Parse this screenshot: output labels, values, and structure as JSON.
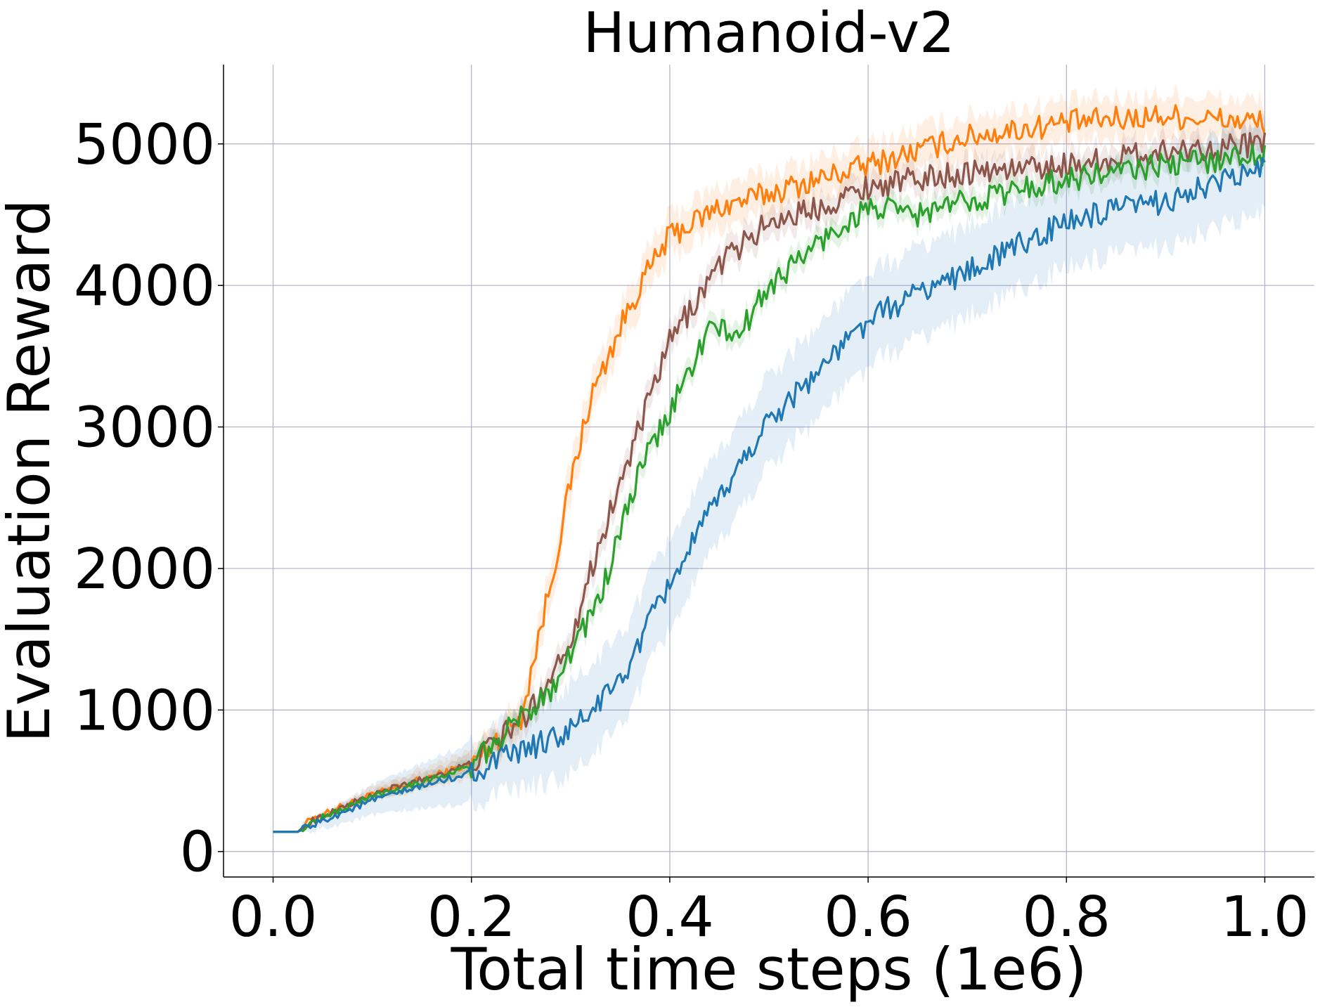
{
  "chart_data": {
    "type": "line",
    "title": "Humanoid-v2",
    "xlabel": "Total time steps (1e6)",
    "ylabel": "Evaluation Reward",
    "xlim": [
      -0.05,
      1.05
    ],
    "ylim": [
      -180,
      5560
    ],
    "xticks": [
      0.0,
      0.2,
      0.4,
      0.6,
      0.8,
      1.0
    ],
    "xtick_labels": [
      "0.0",
      "0.2",
      "0.4",
      "0.6",
      "0.8",
      "1.0"
    ],
    "yticks": [
      0,
      1000,
      2000,
      3000,
      4000,
      5000
    ],
    "ytick_labels": [
      "0",
      "1000",
      "2000",
      "3000",
      "4000",
      "5000"
    ],
    "grid": true,
    "legend": "none",
    "series": [
      {
        "color": "#ff7f0e",
        "band": 150,
        "x": [
          0,
          0.025,
          0.04,
          0.1,
          0.2,
          0.25,
          0.28,
          0.3,
          0.32,
          0.35,
          0.37,
          0.4,
          0.45,
          0.5,
          0.55,
          0.6,
          0.65,
          0.7,
          0.8,
          0.9,
          1.0
        ],
        "y": [
          140,
          140,
          240,
          400,
          620,
          950,
          1900,
          2600,
          3200,
          3700,
          4000,
          4350,
          4550,
          4650,
          4750,
          4850,
          4950,
          5050,
          5150,
          5200,
          5150
        ]
      },
      {
        "color": "#8c564b",
        "band": 100,
        "x": [
          0,
          0.025,
          0.04,
          0.1,
          0.2,
          0.26,
          0.3,
          0.33,
          0.36,
          0.4,
          0.45,
          0.5,
          0.55,
          0.6,
          0.7,
          0.8,
          0.9,
          1.0
        ],
        "y": [
          140,
          140,
          220,
          400,
          620,
          1000,
          1500,
          2200,
          2800,
          3600,
          4150,
          4450,
          4550,
          4700,
          4800,
          4850,
          4950,
          5000
        ]
      },
      {
        "color": "#2ca02c",
        "band": 80,
        "x": [
          0,
          0.025,
          0.04,
          0.1,
          0.2,
          0.28,
          0.33,
          0.37,
          0.4,
          0.44,
          0.47,
          0.5,
          0.55,
          0.6,
          0.65,
          0.7,
          0.8,
          0.9,
          1.0
        ],
        "y": [
          140,
          140,
          210,
          390,
          600,
          1150,
          1800,
          2700,
          3100,
          3700,
          3650,
          4000,
          4300,
          4550,
          4500,
          4600,
          4750,
          4850,
          4930
        ]
      },
      {
        "color": "#1f77b4",
        "band": 320,
        "x": [
          0,
          0.025,
          0.04,
          0.1,
          0.2,
          0.3,
          0.35,
          0.4,
          0.45,
          0.5,
          0.55,
          0.6,
          0.65,
          0.7,
          0.8,
          0.9,
          1.0
        ],
        "y": [
          140,
          140,
          190,
          360,
          560,
          850,
          1200,
          1900,
          2500,
          3050,
          3400,
          3750,
          3950,
          4100,
          4450,
          4600,
          4830
        ]
      }
    ]
  }
}
